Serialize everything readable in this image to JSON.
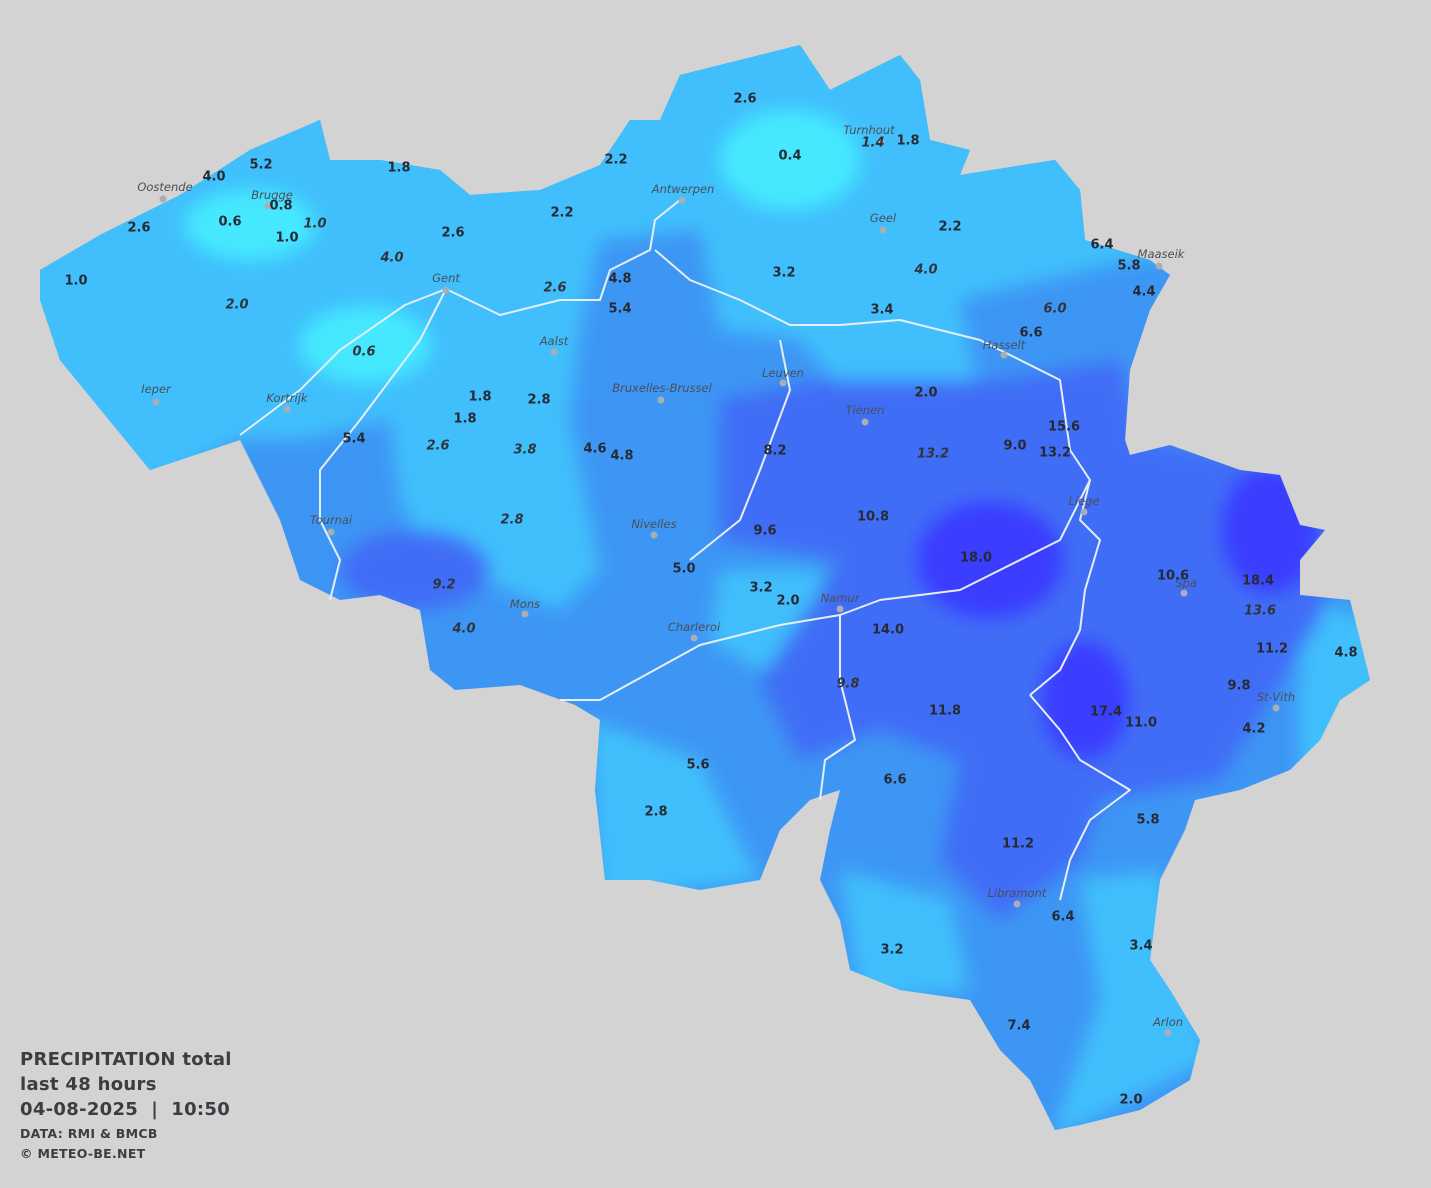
{
  "stations": [
    {
      "value": "2.6",
      "italic": false
    },
    {
      "value": "0.4",
      "italic": false
    },
    {
      "value": "1.4",
      "italic": true
    },
    {
      "value": "1.8",
      "italic": false
    },
    {
      "value": "2.2",
      "italic": false
    },
    {
      "value": "5.2",
      "italic": false
    },
    {
      "value": "4.0",
      "italic": false
    },
    {
      "value": "1.8",
      "italic": false
    },
    {
      "value": "0.8",
      "italic": false
    },
    {
      "value": "0.6",
      "italic": false
    },
    {
      "value": "1.0",
      "italic": true
    },
    {
      "value": "1.0",
      "italic": false
    },
    {
      "value": "2.6",
      "italic": false
    },
    {
      "value": "2.2",
      "italic": false
    },
    {
      "value": "2.6",
      "italic": false
    },
    {
      "value": "2.2",
      "italic": false
    },
    {
      "value": "4.0",
      "italic": true
    },
    {
      "value": "6.4",
      "italic": false
    },
    {
      "value": "5.8",
      "italic": false
    },
    {
      "value": "4.4",
      "italic": false
    },
    {
      "value": "1.0",
      "italic": false
    },
    {
      "value": "4.8",
      "italic": false
    },
    {
      "value": "3.2",
      "italic": false
    },
    {
      "value": "4.0",
      "italic": true
    },
    {
      "value": "2.6",
      "italic": true
    },
    {
      "value": "5.4",
      "italic": false
    },
    {
      "value": "2.0",
      "italic": true
    },
    {
      "value": "3.4",
      "italic": false
    },
    {
      "value": "6.0",
      "italic": true
    },
    {
      "value": "6.6",
      "italic": false
    },
    {
      "value": "0.6",
      "italic": true
    },
    {
      "value": "1.8",
      "italic": false
    },
    {
      "value": "2.8",
      "italic": false
    },
    {
      "value": "1.8",
      "italic": false
    },
    {
      "value": "2.0",
      "italic": false
    },
    {
      "value": "15.6",
      "italic": false
    },
    {
      "value": "5.4",
      "italic": false
    },
    {
      "value": "2.6",
      "italic": true
    },
    {
      "value": "3.8",
      "italic": true
    },
    {
      "value": "4.6",
      "italic": false
    },
    {
      "value": "4.8",
      "italic": false
    },
    {
      "value": "8.2",
      "italic": false
    },
    {
      "value": "13.2",
      "italic": true
    },
    {
      "value": "9.0",
      "italic": false
    },
    {
      "value": "13.2",
      "italic": false
    },
    {
      "value": "2.8",
      "italic": true
    },
    {
      "value": "10.8",
      "italic": false
    },
    {
      "value": "9.6",
      "italic": false
    },
    {
      "value": "5.0",
      "italic": false
    },
    {
      "value": "18.0",
      "italic": false
    },
    {
      "value": "10.6",
      "italic": false
    },
    {
      "value": "18.4",
      "italic": false
    },
    {
      "value": "9.2",
      "italic": true
    },
    {
      "value": "3.2",
      "italic": false
    },
    {
      "value": "2.0",
      "italic": false
    },
    {
      "value": "13.6",
      "italic": true
    },
    {
      "value": "4.0",
      "italic": true
    },
    {
      "value": "14.0",
      "italic": false
    },
    {
      "value": "11.2",
      "italic": false
    },
    {
      "value": "4.8",
      "italic": false
    },
    {
      "value": "9.8",
      "italic": true
    },
    {
      "value": "9.8",
      "italic": false
    },
    {
      "value": "11.8",
      "italic": false
    },
    {
      "value": "17.4",
      "italic": false
    },
    {
      "value": "11.0",
      "italic": false
    },
    {
      "value": "4.2",
      "italic": false
    },
    {
      "value": "5.6",
      "italic": false
    },
    {
      "value": "6.6",
      "italic": false
    },
    {
      "value": "2.8",
      "italic": false
    },
    {
      "value": "5.8",
      "italic": false
    },
    {
      "value": "11.2",
      "italic": false
    },
    {
      "value": "6.4",
      "italic": false
    },
    {
      "value": "3.2",
      "italic": false
    },
    {
      "value": "3.4",
      "italic": false
    },
    {
      "value": "7.4",
      "italic": false
    },
    {
      "value": "2.0",
      "italic": false
    }
  ],
  "cities": [
    {
      "name": "Oostende"
    },
    {
      "name": "Brugge"
    },
    {
      "name": "Antwerpen"
    },
    {
      "name": "Turnhout"
    },
    {
      "name": "Geel"
    },
    {
      "name": "Maaseik"
    },
    {
      "name": "Gent"
    },
    {
      "name": "Aalst"
    },
    {
      "name": "Hasselt"
    },
    {
      "name": "Ieper"
    },
    {
      "name": "Bruxelles-Brussel"
    },
    {
      "name": "Leuven"
    },
    {
      "name": "Kortrijk"
    },
    {
      "name": "Tienen"
    },
    {
      "name": "Liege"
    },
    {
      "name": "Tournai"
    },
    {
      "name": "Nivelles"
    },
    {
      "name": "Spa"
    },
    {
      "name": "Mons"
    },
    {
      "name": "Namur"
    },
    {
      "name": "Charleroi"
    },
    {
      "name": "St-Vith"
    },
    {
      "name": "Libramont"
    },
    {
      "name": "Arlon"
    }
  ],
  "legend": {
    "title": "PRECIPITATION total",
    "period": "last 48 hours",
    "datetime": "04-08-2025  |  10:50",
    "source": "DATA: RMI & BMCB",
    "copyright": "© METEO-BE.NET"
  }
}
